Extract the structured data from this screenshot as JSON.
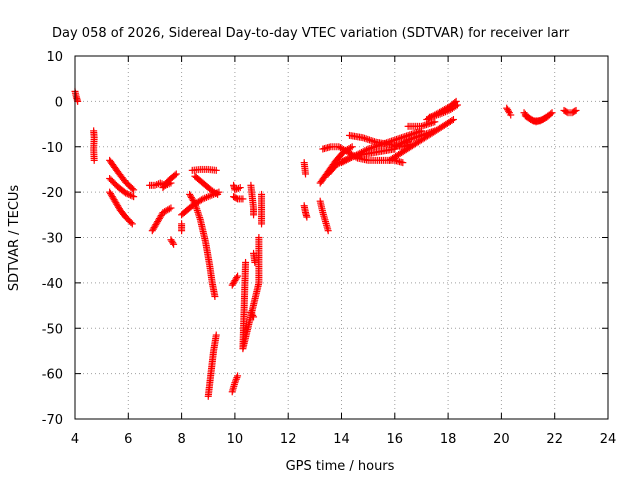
{
  "chart_data": {
    "type": "scatter",
    "title": "Day 058 of 2026, Sidereal Day-to-day VTEC variation (SDTVAR) for receiver larr",
    "xlabel": "GPS time / hours",
    "ylabel": "SDTVAR / TECUs",
    "xlim": [
      4,
      24
    ],
    "ylim": [
      -70,
      10
    ],
    "x_ticks": [
      "4",
      "6",
      "8",
      "10",
      "12",
      "14",
      "16",
      "18",
      "20",
      "22",
      "24"
    ],
    "y_ticks": [
      "10",
      "0",
      "-10",
      "-20",
      "-30",
      "-40",
      "-50",
      "-60",
      "-70"
    ],
    "grid": true,
    "marker": "+",
    "marker_color": "#ff0000",
    "segments": [
      [
        [
          4.0,
          2.2
        ],
        [
          4.05,
          1.0
        ],
        [
          4.1,
          0.0
        ]
      ],
      [
        [
          4.7,
          -6.5
        ],
        [
          4.72,
          -8.0
        ],
        [
          4.7,
          -10.5
        ],
        [
          4.72,
          -13.0
        ]
      ],
      [
        [
          5.3,
          -13.0
        ],
        [
          5.6,
          -15.5
        ],
        [
          5.9,
          -17.8
        ],
        [
          6.2,
          -19.5
        ]
      ],
      [
        [
          5.3,
          -17.0
        ],
        [
          5.6,
          -18.8
        ],
        [
          5.9,
          -20.2
        ],
        [
          6.2,
          -21.0
        ]
      ],
      [
        [
          5.3,
          -20.0
        ],
        [
          5.5,
          -22.0
        ],
        [
          5.7,
          -24.0
        ],
        [
          5.9,
          -25.5
        ],
        [
          6.15,
          -27.0
        ]
      ],
      [
        [
          6.8,
          -18.5
        ],
        [
          7.0,
          -18.5
        ],
        [
          7.2,
          -18.0
        ],
        [
          7.4,
          -18.5
        ],
        [
          7.6,
          -18.0
        ]
      ],
      [
        [
          6.9,
          -28.5
        ],
        [
          7.1,
          -26.5
        ],
        [
          7.3,
          -24.5
        ],
        [
          7.6,
          -23.5
        ]
      ],
      [
        [
          7.8,
          -16.0
        ],
        [
          7.5,
          -17.5
        ],
        [
          7.3,
          -19.0
        ]
      ],
      [
        [
          7.6,
          -30.5
        ],
        [
          7.7,
          -31.5
        ]
      ],
      [
        [
          8.0,
          -27.0
        ],
        [
          8.0,
          -28.5
        ]
      ],
      [
        [
          8.3,
          -20.5
        ],
        [
          8.5,
          -22.5
        ],
        [
          8.7,
          -26.0
        ],
        [
          8.9,
          -31.0
        ],
        [
          9.05,
          -36.0
        ],
        [
          9.15,
          -40.0
        ],
        [
          9.25,
          -43.0
        ]
      ],
      [
        [
          8.4,
          -15.2
        ],
        [
          8.7,
          -15.0
        ],
        [
          9.0,
          -15.0
        ],
        [
          9.3,
          -15.2
        ]
      ],
      [
        [
          8.0,
          -25.0
        ],
        [
          8.4,
          -23.0
        ],
        [
          8.8,
          -21.5
        ],
        [
          9.2,
          -20.5
        ],
        [
          9.4,
          -20.0
        ]
      ],
      [
        [
          8.5,
          -16.5
        ],
        [
          8.8,
          -18.0
        ],
        [
          9.1,
          -19.5
        ],
        [
          9.35,
          -20.5
        ]
      ],
      [
        [
          9.0,
          -65.0
        ],
        [
          9.1,
          -60.0
        ],
        [
          9.2,
          -55.0
        ],
        [
          9.3,
          -51.5
        ]
      ],
      [
        [
          9.9,
          -64.0
        ],
        [
          10.0,
          -62.0
        ],
        [
          10.1,
          -60.5
        ]
      ],
      [
        [
          9.9,
          -40.5
        ],
        [
          10.0,
          -39.5
        ],
        [
          10.1,
          -38.5
        ]
      ],
      [
        [
          9.95,
          -18.5
        ],
        [
          10.0,
          -19.5
        ],
        [
          10.2,
          -19.0
        ]
      ],
      [
        [
          9.95,
          -21.0
        ],
        [
          10.1,
          -21.5
        ],
        [
          10.3,
          -21.5
        ]
      ],
      [
        [
          10.6,
          -18.5
        ],
        [
          10.65,
          -21.0
        ],
        [
          10.7,
          -23.5
        ],
        [
          10.7,
          -25.0
        ]
      ],
      [
        [
          10.7,
          -33.5
        ],
        [
          10.75,
          -35.5
        ]
      ],
      [
        [
          10.4,
          -35.5
        ],
        [
          10.3,
          -54.5
        ],
        [
          10.9,
          -40.0
        ],
        [
          10.9,
          -30.0
        ]
      ],
      [
        [
          10.6,
          -46.5
        ],
        [
          10.7,
          -47.5
        ]
      ],
      [
        [
          11.0,
          -20.5
        ],
        [
          11.0,
          -23.0
        ],
        [
          11.0,
          -27.0
        ]
      ],
      [
        [
          12.6,
          -13.5
        ],
        [
          12.65,
          -16.0
        ]
      ],
      [
        [
          12.6,
          -23.0
        ],
        [
          12.65,
          -24.5
        ],
        [
          12.7,
          -25.5
        ]
      ],
      [
        [
          13.2,
          -22.0
        ],
        [
          13.3,
          -24.5
        ],
        [
          13.4,
          -26.5
        ],
        [
          13.5,
          -28.5
        ]
      ],
      [
        [
          13.2,
          -18.0
        ],
        [
          13.5,
          -15.5
        ],
        [
          13.8,
          -13.0
        ],
        [
          14.1,
          -11.0
        ],
        [
          14.4,
          -10.0
        ]
      ],
      [
        [
          13.3,
          -10.5
        ],
        [
          13.6,
          -10.0
        ],
        [
          13.9,
          -10.0
        ],
        [
          14.2,
          -11.0
        ],
        [
          14.6,
          -12.5
        ],
        [
          15.0,
          -13.0
        ],
        [
          15.5,
          -13.0
        ],
        [
          16.0,
          -13.0
        ],
        [
          16.3,
          -13.5
        ]
      ],
      [
        [
          13.5,
          -16.0
        ],
        [
          13.8,
          -14.0
        ],
        [
          14.1,
          -13.0
        ],
        [
          14.5,
          -12.0
        ],
        [
          15.0,
          -11.5
        ],
        [
          15.5,
          -11.0
        ],
        [
          16.0,
          -10.5
        ]
      ],
      [
        [
          14.0,
          -13.5
        ],
        [
          14.5,
          -12.0
        ],
        [
          15.0,
          -10.5
        ],
        [
          15.5,
          -9.5
        ],
        [
          16.0,
          -8.5
        ],
        [
          16.5,
          -7.5
        ],
        [
          17.0,
          -6.5
        ]
      ],
      [
        [
          14.3,
          -7.5
        ],
        [
          14.8,
          -8.0
        ],
        [
          15.3,
          -9.0
        ],
        [
          15.8,
          -9.5
        ],
        [
          16.3,
          -10.0
        ],
        [
          16.6,
          -9.5
        ]
      ],
      [
        [
          15.8,
          -13.0
        ],
        [
          16.2,
          -11.5
        ],
        [
          16.6,
          -10.0
        ],
        [
          17.0,
          -8.5
        ],
        [
          17.4,
          -7.0
        ],
        [
          17.8,
          -5.5
        ],
        [
          18.2,
          -4.0
        ]
      ],
      [
        [
          16.0,
          -10.0
        ],
        [
          16.5,
          -8.5
        ],
        [
          17.0,
          -7.5
        ],
        [
          17.5,
          -6.5
        ]
      ],
      [
        [
          16.5,
          -5.5
        ],
        [
          17.0,
          -5.5
        ],
        [
          17.5,
          -4.5
        ]
      ],
      [
        [
          17.2,
          -4.0
        ],
        [
          17.5,
          -3.0
        ],
        [
          17.8,
          -2.0
        ],
        [
          18.1,
          -1.0
        ],
        [
          18.3,
          0.0
        ]
      ],
      [
        [
          17.3,
          -3.5
        ],
        [
          17.7,
          -2.8
        ],
        [
          18.1,
          -1.8
        ],
        [
          18.35,
          -0.8
        ]
      ],
      [
        [
          20.2,
          -1.5
        ],
        [
          20.3,
          -2.5
        ],
        [
          20.35,
          -3.0
        ]
      ],
      [
        [
          20.85,
          -2.5
        ],
        [
          21.0,
          -3.5
        ],
        [
          21.2,
          -4.3
        ],
        [
          21.45,
          -4.3
        ],
        [
          21.7,
          -3.5
        ],
        [
          21.9,
          -2.5
        ]
      ],
      [
        [
          20.9,
          -3.2
        ],
        [
          21.1,
          -4.0
        ],
        [
          21.3,
          -4.5
        ],
        [
          21.55,
          -4.0
        ],
        [
          21.8,
          -3.0
        ]
      ],
      [
        [
          22.35,
          -2.0
        ],
        [
          22.5,
          -2.5
        ],
        [
          22.65,
          -2.5
        ],
        [
          22.8,
          -2.0
        ]
      ]
    ]
  }
}
